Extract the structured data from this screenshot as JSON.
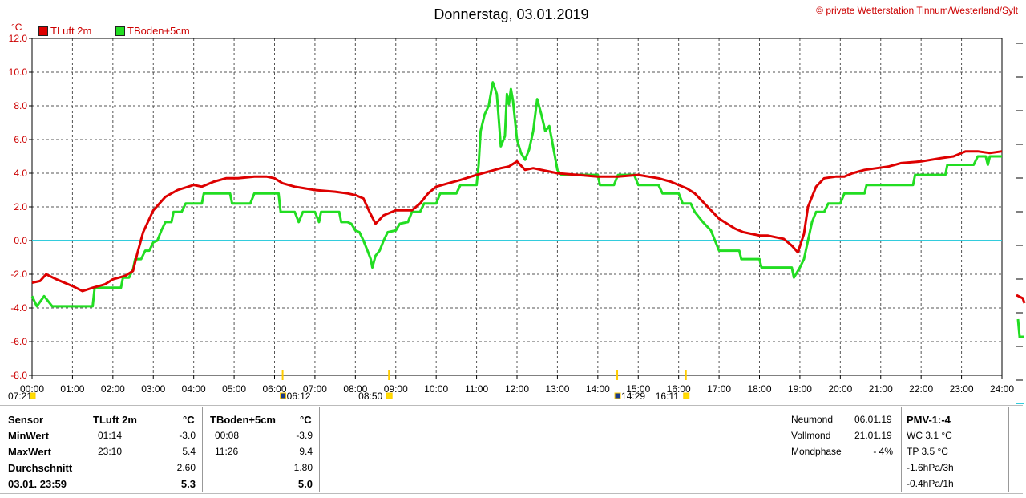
{
  "header": {
    "title": "Donnerstag, 03.01.2019",
    "copyright": "© private Wetterstation Tinnum/Westerland/Sylt",
    "unit": "°C"
  },
  "colors": {
    "series1": "#dd0000",
    "series2": "#22dd22",
    "zero_line": "#33ccdd",
    "grid": "#555555"
  },
  "chart_data": {
    "type": "line",
    "title": "Donnerstag, 03.01.2019",
    "ylabel": "°C",
    "ylim": [
      -8,
      12
    ],
    "xlim": [
      0,
      24
    ],
    "y_ticks": [
      "12.0",
      "10.0",
      "8.0",
      "6.0",
      "4.0",
      "2.0",
      "0.0",
      "-2.0",
      "-4.0",
      "-6.0",
      "-8.0"
    ],
    "x_ticks": [
      "00:00",
      "01:00",
      "02:00",
      "03:00",
      "04:00",
      "05:00",
      "06:00",
      "07:00",
      "08:00",
      "09:00",
      "10:00",
      "11:00",
      "12:00",
      "13:00",
      "14:00",
      "15:00",
      "16:00",
      "17:00",
      "18:00",
      "19:00",
      "20:00",
      "21:00",
      "22:00",
      "23:00",
      "24:00"
    ],
    "grid": true,
    "legend": "top-left",
    "series": [
      {
        "name": "TLuft 2m",
        "points": [
          [
            0,
            -2.5
          ],
          [
            0.2,
            -2.4
          ],
          [
            0.35,
            -2.0
          ],
          [
            0.6,
            -2.3
          ],
          [
            1.0,
            -2.7
          ],
          [
            1.25,
            -3.0
          ],
          [
            1.5,
            -2.8
          ],
          [
            1.8,
            -2.6
          ],
          [
            2.0,
            -2.3
          ],
          [
            2.3,
            -2.1
          ],
          [
            2.5,
            -1.8
          ],
          [
            2.6,
            -0.8
          ],
          [
            2.75,
            0.5
          ],
          [
            3.0,
            1.8
          ],
          [
            3.3,
            2.6
          ],
          [
            3.6,
            3.0
          ],
          [
            4.0,
            3.3
          ],
          [
            4.2,
            3.2
          ],
          [
            4.5,
            3.5
          ],
          [
            4.8,
            3.7
          ],
          [
            5.1,
            3.7
          ],
          [
            5.5,
            3.8
          ],
          [
            5.8,
            3.8
          ],
          [
            6.0,
            3.7
          ],
          [
            6.2,
            3.4
          ],
          [
            6.5,
            3.2
          ],
          [
            7.0,
            3.0
          ],
          [
            7.5,
            2.9
          ],
          [
            7.8,
            2.8
          ],
          [
            8.0,
            2.7
          ],
          [
            8.2,
            2.5
          ],
          [
            8.35,
            1.7
          ],
          [
            8.5,
            1.0
          ],
          [
            8.7,
            1.5
          ],
          [
            9.0,
            1.8
          ],
          [
            9.2,
            1.8
          ],
          [
            9.4,
            1.8
          ],
          [
            9.6,
            2.2
          ],
          [
            9.8,
            2.8
          ],
          [
            10.0,
            3.2
          ],
          [
            10.3,
            3.4
          ],
          [
            10.6,
            3.6
          ],
          [
            11.0,
            3.9
          ],
          [
            11.3,
            4.1
          ],
          [
            11.6,
            4.3
          ],
          [
            11.8,
            4.4
          ],
          [
            12.0,
            4.7
          ],
          [
            12.2,
            4.2
          ],
          [
            12.4,
            4.3
          ],
          [
            12.6,
            4.2
          ],
          [
            12.8,
            4.1
          ],
          [
            13.0,
            4.0
          ],
          [
            13.5,
            3.9
          ],
          [
            14.0,
            3.8
          ],
          [
            14.5,
            3.8
          ],
          [
            15.0,
            3.9
          ],
          [
            15.5,
            3.7
          ],
          [
            15.8,
            3.5
          ],
          [
            16.0,
            3.3
          ],
          [
            16.2,
            3.1
          ],
          [
            16.4,
            2.8
          ],
          [
            16.6,
            2.3
          ],
          [
            16.8,
            1.8
          ],
          [
            17.0,
            1.3
          ],
          [
            17.2,
            1.0
          ],
          [
            17.4,
            0.7
          ],
          [
            17.6,
            0.5
          ],
          [
            17.8,
            0.4
          ],
          [
            18.0,
            0.3
          ],
          [
            18.2,
            0.3
          ],
          [
            18.4,
            0.2
          ],
          [
            18.6,
            0.1
          ],
          [
            18.8,
            -0.3
          ],
          [
            18.95,
            -0.7
          ],
          [
            19.1,
            0.4
          ],
          [
            19.2,
            2.0
          ],
          [
            19.4,
            3.2
          ],
          [
            19.6,
            3.7
          ],
          [
            19.9,
            3.8
          ],
          [
            20.1,
            3.8
          ],
          [
            20.3,
            4.0
          ],
          [
            20.6,
            4.2
          ],
          [
            20.9,
            4.3
          ],
          [
            21.2,
            4.4
          ],
          [
            21.5,
            4.6
          ],
          [
            22.0,
            4.7
          ],
          [
            22.5,
            4.9
          ],
          [
            22.8,
            5.0
          ],
          [
            23.1,
            5.3
          ],
          [
            23.4,
            5.3
          ],
          [
            23.7,
            5.2
          ],
          [
            24.0,
            5.3
          ]
        ]
      },
      {
        "name": "TBoden+5cm",
        "points": [
          [
            0,
            -3.3
          ],
          [
            0.12,
            -3.9
          ],
          [
            0.3,
            -3.3
          ],
          [
            0.5,
            -3.9
          ],
          [
            1.0,
            -3.9
          ],
          [
            1.5,
            -3.9
          ],
          [
            1.55,
            -2.8
          ],
          [
            2.0,
            -2.8
          ],
          [
            2.2,
            -2.8
          ],
          [
            2.25,
            -2.2
          ],
          [
            2.4,
            -2.2
          ],
          [
            2.5,
            -1.7
          ],
          [
            2.55,
            -1.1
          ],
          [
            2.7,
            -1.1
          ],
          [
            2.8,
            -0.6
          ],
          [
            2.9,
            -0.6
          ],
          [
            3.0,
            -0.1
          ],
          [
            3.1,
            0.0
          ],
          [
            3.2,
            0.6
          ],
          [
            3.3,
            1.1
          ],
          [
            3.45,
            1.1
          ],
          [
            3.5,
            1.7
          ],
          [
            3.7,
            1.7
          ],
          [
            3.8,
            2.2
          ],
          [
            4.2,
            2.2
          ],
          [
            4.25,
            2.8
          ],
          [
            4.9,
            2.8
          ],
          [
            4.95,
            2.2
          ],
          [
            5.4,
            2.2
          ],
          [
            5.5,
            2.8
          ],
          [
            6.1,
            2.8
          ],
          [
            6.15,
            1.7
          ],
          [
            6.5,
            1.7
          ],
          [
            6.6,
            1.1
          ],
          [
            6.7,
            1.7
          ],
          [
            7.0,
            1.7
          ],
          [
            7.1,
            1.1
          ],
          [
            7.15,
            1.7
          ],
          [
            7.6,
            1.7
          ],
          [
            7.65,
            1.1
          ],
          [
            7.8,
            1.1
          ],
          [
            7.9,
            1.0
          ],
          [
            8.0,
            0.6
          ],
          [
            8.1,
            0.5
          ],
          [
            8.2,
            0.0
          ],
          [
            8.3,
            -0.6
          ],
          [
            8.38,
            -1.1
          ],
          [
            8.42,
            -1.6
          ],
          [
            8.5,
            -0.9
          ],
          [
            8.6,
            -0.6
          ],
          [
            8.7,
            0.0
          ],
          [
            8.8,
            0.5
          ],
          [
            9.0,
            0.6
          ],
          [
            9.1,
            1.0
          ],
          [
            9.3,
            1.1
          ],
          [
            9.4,
            1.7
          ],
          [
            9.6,
            1.7
          ],
          [
            9.7,
            2.2
          ],
          [
            10.0,
            2.2
          ],
          [
            10.1,
            2.8
          ],
          [
            10.5,
            2.8
          ],
          [
            10.6,
            3.3
          ],
          [
            11.0,
            3.3
          ],
          [
            11.05,
            4.5
          ],
          [
            11.1,
            6.5
          ],
          [
            11.2,
            7.5
          ],
          [
            11.3,
            8.0
          ],
          [
            11.4,
            9.4
          ],
          [
            11.5,
            8.7
          ],
          [
            11.6,
            5.6
          ],
          [
            11.7,
            6.2
          ],
          [
            11.75,
            8.7
          ],
          [
            11.8,
            8.1
          ],
          [
            11.85,
            9.0
          ],
          [
            11.9,
            8.3
          ],
          [
            12.0,
            6.0
          ],
          [
            12.1,
            5.2
          ],
          [
            12.2,
            4.8
          ],
          [
            12.3,
            5.4
          ],
          [
            12.4,
            6.5
          ],
          [
            12.5,
            8.4
          ],
          [
            12.6,
            7.5
          ],
          [
            12.7,
            6.5
          ],
          [
            12.8,
            6.8
          ],
          [
            12.9,
            5.5
          ],
          [
            13.0,
            4.2
          ],
          [
            13.1,
            3.9
          ],
          [
            14.0,
            3.9
          ],
          [
            14.05,
            3.3
          ],
          [
            14.4,
            3.3
          ],
          [
            14.5,
            3.9
          ],
          [
            14.9,
            3.9
          ],
          [
            15.0,
            3.3
          ],
          [
            15.5,
            3.3
          ],
          [
            15.6,
            2.8
          ],
          [
            16.0,
            2.8
          ],
          [
            16.1,
            2.2
          ],
          [
            16.3,
            2.2
          ],
          [
            16.4,
            1.7
          ],
          [
            16.6,
            1.1
          ],
          [
            16.8,
            0.6
          ],
          [
            16.9,
            0.0
          ],
          [
            17.0,
            -0.6
          ],
          [
            17.5,
            -0.6
          ],
          [
            17.55,
            -1.1
          ],
          [
            18.0,
            -1.1
          ],
          [
            18.05,
            -1.6
          ],
          [
            18.6,
            -1.6
          ],
          [
            18.8,
            -1.6
          ],
          [
            18.85,
            -2.2
          ],
          [
            19.0,
            -1.6
          ],
          [
            19.1,
            -1.1
          ],
          [
            19.2,
            0.0
          ],
          [
            19.3,
            1.1
          ],
          [
            19.4,
            1.7
          ],
          [
            19.6,
            1.7
          ],
          [
            19.7,
            2.2
          ],
          [
            20.0,
            2.2
          ],
          [
            20.1,
            2.8
          ],
          [
            20.6,
            2.8
          ],
          [
            20.65,
            3.3
          ],
          [
            21.8,
            3.3
          ],
          [
            21.85,
            3.9
          ],
          [
            22.6,
            3.9
          ],
          [
            22.65,
            4.5
          ],
          [
            23.3,
            4.5
          ],
          [
            23.4,
            5.0
          ],
          [
            23.6,
            5.0
          ],
          [
            23.65,
            4.5
          ],
          [
            23.7,
            5.0
          ],
          [
            24.0,
            5.0
          ]
        ]
      }
    ]
  },
  "sun_markers": [
    {
      "label": "07:21",
      "time": 0.0
    },
    {
      "label": "06:12",
      "time": 6.2
    },
    {
      "label": "08:50",
      "time": 8.83
    },
    {
      "label": "14:29",
      "time": 14.48
    },
    {
      "label": "16:11",
      "time": 16.18
    }
  ],
  "stats": {
    "headers": {
      "sensor": "Sensor",
      "s1": "TLuft 2m",
      "s2": "TBoden+5cm",
      "unit": "°C"
    },
    "rows": [
      {
        "label": "MinWert",
        "s1_time": "01:14",
        "s1_val": "-3.0",
        "s2_time": "00:08",
        "s2_val": "-3.9"
      },
      {
        "label": "MaxWert",
        "s1_time": "23:10",
        "s1_val": "5.4",
        "s2_time": "11:26",
        "s2_val": "9.4"
      },
      {
        "label": "Durchschnitt",
        "s1_time": "",
        "s1_val": "2.60",
        "s2_time": "",
        "s2_val": "1.80"
      },
      {
        "label": "03.01. 23:59",
        "s1_time": "",
        "s1_val": "5.3",
        "s2_time": "",
        "s2_val": "5.0"
      }
    ]
  },
  "moon": {
    "rows": [
      {
        "label": "Neumond",
        "value": "06.01.19"
      },
      {
        "label": "Vollmond",
        "value": "21.01.19"
      },
      {
        "label": "Mondphase",
        "value": "- 4%"
      }
    ]
  },
  "pmv": {
    "title": "PMV-1:-4",
    "lines": [
      "WC 3.1 °C",
      "TP 3.5 °C",
      "-1.6hPa/3h",
      "-0.4hPa/1h"
    ]
  }
}
